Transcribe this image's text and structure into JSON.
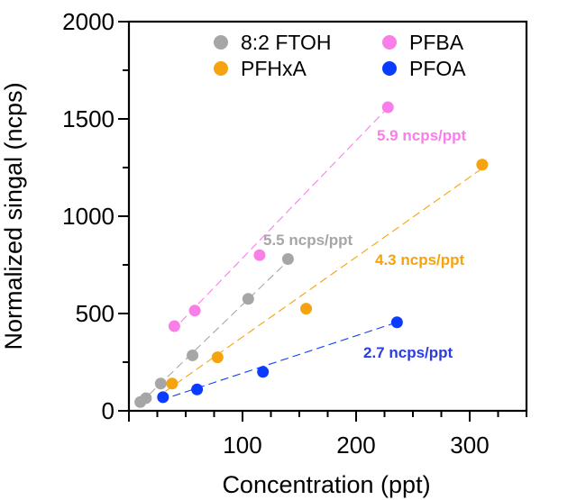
{
  "chart_data": {
    "type": "scatter",
    "xlabel": "Concentration (ppt)",
    "ylabel": "Normalized singal (ncps)",
    "xlim": [
      0,
      350
    ],
    "ylim": [
      0,
      2000
    ],
    "x_ticks": [
      100,
      200,
      300
    ],
    "y_ticks": [
      0,
      500,
      1000,
      1500,
      2000
    ],
    "legend_position": "top",
    "series": [
      {
        "name": "8:2 FTOH",
        "color": "#a6a6a6",
        "x": [
          10,
          15,
          28,
          56,
          105,
          140
        ],
        "y": [
          45,
          65,
          140,
          285,
          575,
          780
        ],
        "fit_x": [
          10,
          140
        ],
        "fit_y": [
          40,
          770
        ],
        "annotation": "5.5 ncps/ppt"
      },
      {
        "name": "PFBA",
        "color": "#f97ee8",
        "x": [
          40,
          58,
          115,
          228
        ],
        "y": [
          435,
          515,
          800,
          1560
        ],
        "fit_x": [
          38,
          230
        ],
        "fit_y": [
          410,
          1570
        ],
        "annotation": "5.9 ncps/ppt"
      },
      {
        "name": "PFHxA",
        "color": "#f5a30f",
        "x": [
          38,
          78,
          156,
          311
        ],
        "y": [
          140,
          275,
          525,
          1265
        ],
        "fit_x": [
          32,
          312
        ],
        "fit_y": [
          100,
          1250
        ],
        "annotation": "4.3 ncps/ppt"
      },
      {
        "name": "PFOA",
        "color": "#0a3cff",
        "x": [
          30,
          60,
          118,
          236
        ],
        "y": [
          70,
          110,
          200,
          455
        ],
        "fit_x": [
          28,
          236
        ],
        "fit_y": [
          55,
          455
        ],
        "annotation": "2.7 ncps/ppt"
      }
    ]
  }
}
